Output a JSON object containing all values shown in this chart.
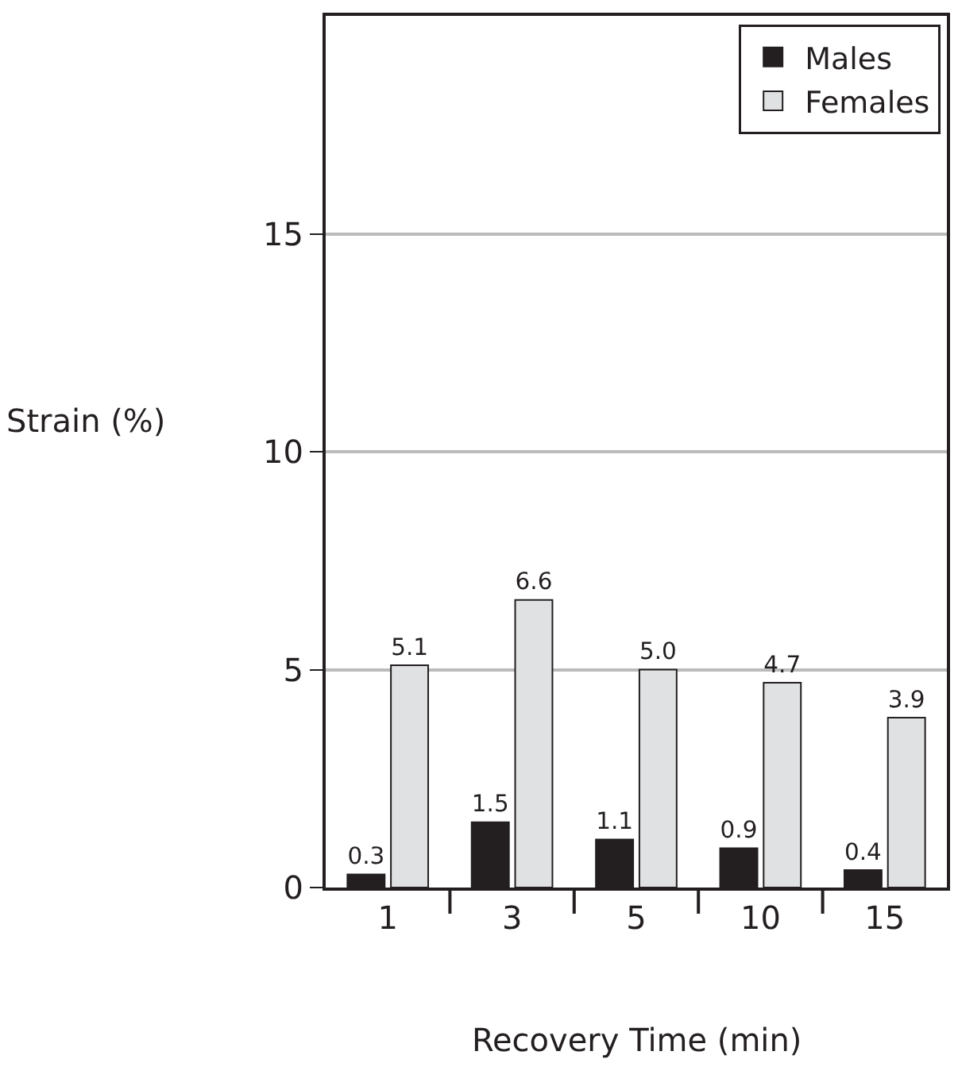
{
  "chart_data": {
    "type": "bar",
    "xlabel": "Recovery Time (min)",
    "ylabel": "Strain (%)",
    "categories": [
      "1",
      "3",
      "5",
      "10",
      "15"
    ],
    "series": [
      {
        "name": "Males",
        "color": "#231f20",
        "values": [
          0.3,
          1.5,
          1.1,
          0.9,
          0.4
        ],
        "value_labels": [
          "0.3",
          "1.5",
          "1.1",
          "0.9",
          "0.4"
        ]
      },
      {
        "name": "Females",
        "color": "#e0e1e2",
        "values": [
          5.1,
          6.6,
          5.0,
          4.7,
          3.9
        ],
        "value_labels": [
          "5.1",
          "6.6",
          "5.0",
          "4.7",
          "3.9"
        ]
      }
    ],
    "ylim": [
      0,
      20
    ],
    "yticks": [
      0,
      5,
      10,
      15
    ],
    "grid": "y",
    "legend": "top right"
  }
}
